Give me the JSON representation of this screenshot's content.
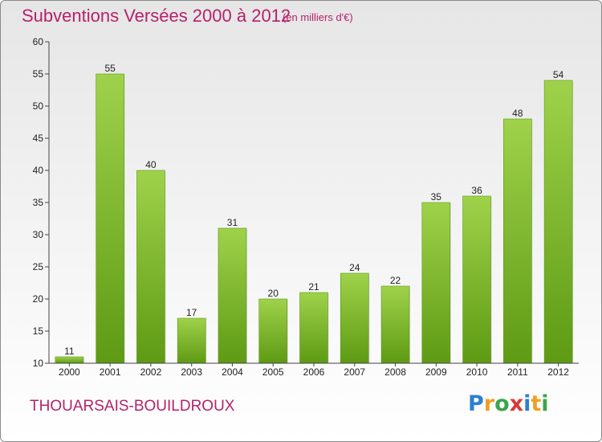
{
  "chart_data": {
    "type": "bar",
    "title": "Subventions Versées 2000 à 2012",
    "subtitle": "(en milliers d'€)",
    "categories": [
      "2000",
      "2001",
      "2002",
      "2003",
      "2004",
      "2005",
      "2006",
      "2007",
      "2008",
      "2009",
      "2010",
      "2011",
      "2012"
    ],
    "values": [
      11,
      55,
      40,
      17,
      31,
      20,
      21,
      24,
      22,
      35,
      36,
      48,
      54
    ],
    "ylim": [
      10,
      60
    ],
    "yticks": [
      10,
      15,
      20,
      25,
      30,
      35,
      40,
      45,
      50,
      55,
      60
    ],
    "xlabel": "",
    "ylabel": "",
    "grid": false,
    "bar_color": "#7fbf2f",
    "bar_color_light": "#9fd24a",
    "bar_color_dark": "#5e9a14"
  },
  "footer": {
    "place": "THOUARSAIS-BOUILDROUX",
    "logo_letters": [
      {
        "ch": "P",
        "color": "#2d7fd0"
      },
      {
        "ch": "r",
        "color": "#f0a020"
      },
      {
        "ch": "o",
        "color": "#3aa54a"
      },
      {
        "ch": "x",
        "color": "#d83a3a"
      },
      {
        "ch": "i",
        "color": "#2d7fd0"
      },
      {
        "ch": "t",
        "color": "#f0a020"
      },
      {
        "ch": "i",
        "color": "#3aa54a"
      }
    ]
  },
  "colors": {
    "title": "#b5226b",
    "axis": "#444444"
  }
}
